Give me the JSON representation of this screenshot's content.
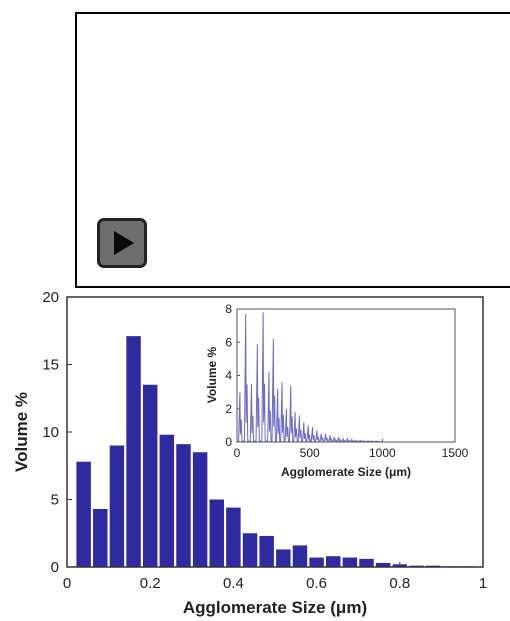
{
  "player": {
    "play_icon": "play-icon"
  },
  "chart_data": [
    {
      "type": "bar",
      "xlabel": "Agglomerate Size (μm)",
      "ylabel": "Volume %",
      "xlim": [
        0,
        1
      ],
      "ylim": [
        0,
        20
      ],
      "xticks": [
        "0",
        "0.2",
        "0.4",
        "0.6",
        "0.8",
        "1"
      ],
      "yticks": [
        "0",
        "5",
        "10",
        "15",
        "20"
      ],
      "bin_width": 0.04,
      "x": [
        0.04,
        0.08,
        0.12,
        0.16,
        0.2,
        0.24,
        0.28,
        0.32,
        0.36,
        0.4,
        0.44,
        0.48,
        0.52,
        0.56,
        0.6,
        0.64,
        0.68,
        0.72,
        0.76,
        0.8,
        0.84,
        0.88,
        0.92,
        0.96
      ],
      "values": [
        7.8,
        4.3,
        9.0,
        17.1,
        13.5,
        9.8,
        9.1,
        8.5,
        5.0,
        4.4,
        2.5,
        2.3,
        1.3,
        1.6,
        0.7,
        0.8,
        0.7,
        0.6,
        0.3,
        0.2,
        0.1,
        0.1,
        0.05,
        0.05
      ],
      "color": "#2e2ba0",
      "grid": false,
      "legend": "none"
    },
    {
      "type": "line",
      "role": "inset",
      "xlabel": "Agglomerate Size (μm)",
      "ylabel": "Volume %",
      "xlim": [
        0,
        1500
      ],
      "ylim": [
        0,
        8
      ],
      "xticks": [
        "0",
        "500",
        "1000",
        "1500"
      ],
      "yticks": [
        "0",
        "2",
        "4",
        "6",
        "8"
      ],
      "color": "#6b6bc8",
      "peaks": [
        {
          "x": 20,
          "y": 3.0
        },
        {
          "x": 60,
          "y": 7.7
        },
        {
          "x": 100,
          "y": 3.5
        },
        {
          "x": 140,
          "y": 5.9
        },
        {
          "x": 180,
          "y": 7.8
        },
        {
          "x": 220,
          "y": 4.2
        },
        {
          "x": 250,
          "y": 6.2
        },
        {
          "x": 280,
          "y": 3.2
        },
        {
          "x": 310,
          "y": 3.6
        },
        {
          "x": 340,
          "y": 2.0
        },
        {
          "x": 370,
          "y": 3.4
        },
        {
          "x": 400,
          "y": 1.8
        },
        {
          "x": 430,
          "y": 1.6
        },
        {
          "x": 460,
          "y": 1.2
        },
        {
          "x": 490,
          "y": 1.0
        },
        {
          "x": 520,
          "y": 0.9
        },
        {
          "x": 550,
          "y": 0.7
        },
        {
          "x": 580,
          "y": 0.5
        },
        {
          "x": 610,
          "y": 0.5
        },
        {
          "x": 640,
          "y": 0.4
        },
        {
          "x": 670,
          "y": 0.3
        },
        {
          "x": 700,
          "y": 0.3
        },
        {
          "x": 730,
          "y": 0.2
        },
        {
          "x": 760,
          "y": 0.2
        },
        {
          "x": 790,
          "y": 0.15
        },
        {
          "x": 820,
          "y": 0.1
        },
        {
          "x": 850,
          "y": 0.1
        },
        {
          "x": 880,
          "y": 0.05
        },
        {
          "x": 910,
          "y": 0.05
        },
        {
          "x": 940,
          "y": 0.03
        }
      ],
      "grid": false,
      "legend": "none"
    }
  ]
}
